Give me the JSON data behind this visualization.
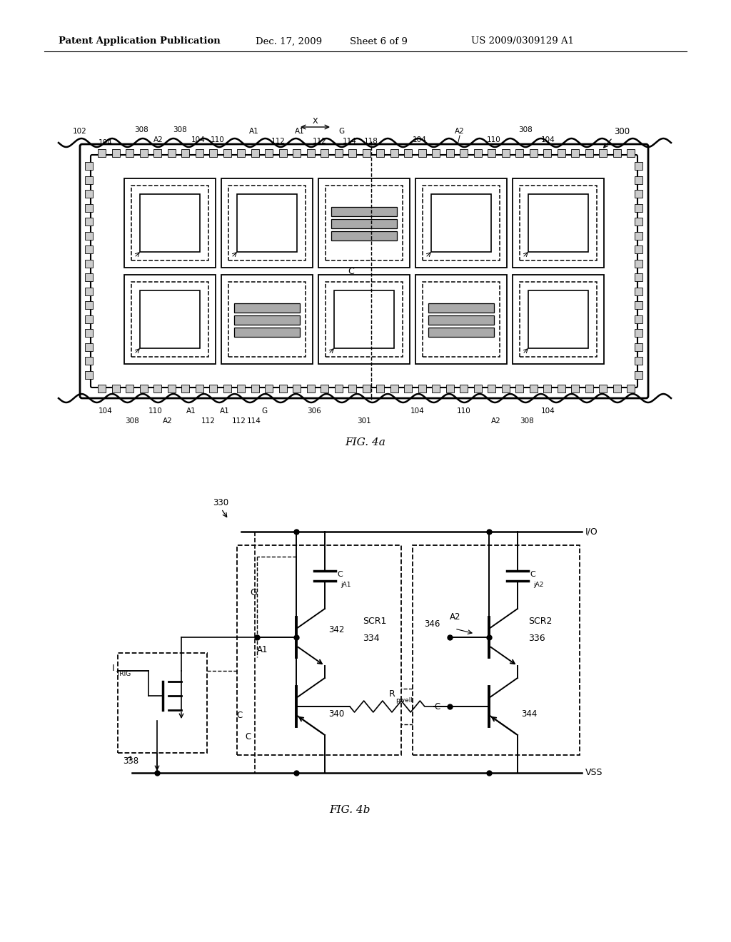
{
  "background_color": "#ffffff",
  "header_text": "Patent Application Publication",
  "header_date": "Dec. 17, 2009",
  "header_sheet": "Sheet 6 of 9",
  "header_patent": "US 2009/0309129 A1",
  "fig4a_label": "FIG. 4a",
  "fig4b_label": "FIG. 4b"
}
